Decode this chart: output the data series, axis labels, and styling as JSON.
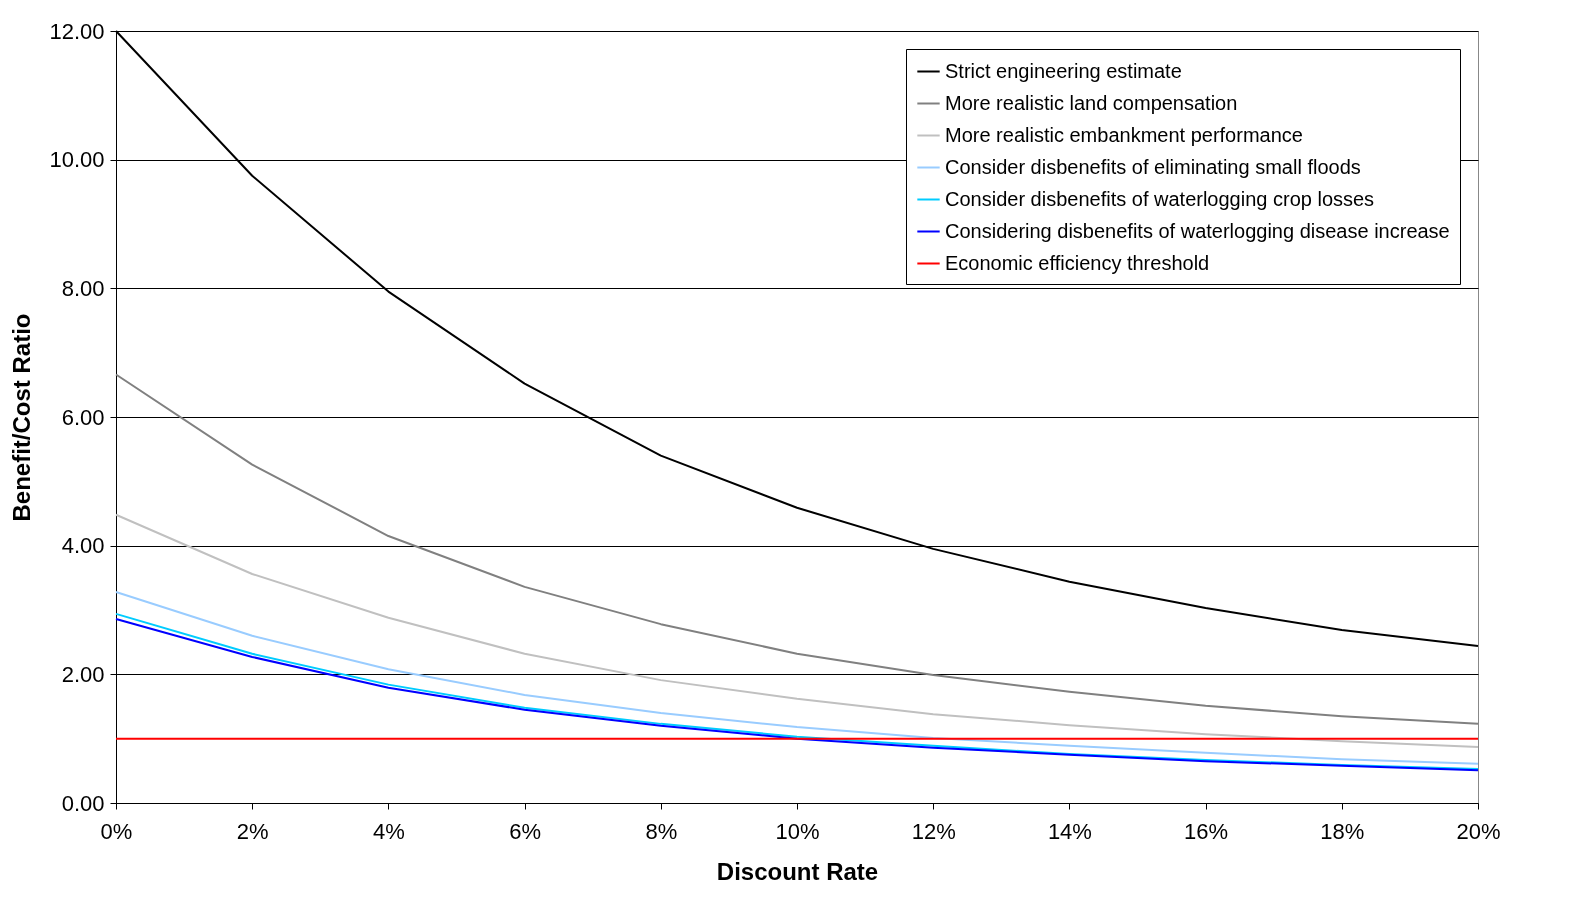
{
  "chart_data": {
    "type": "line",
    "xlabel": "Discount Rate",
    "ylabel": "Benefit/Cost Ratio",
    "x": [
      0,
      2,
      4,
      6,
      8,
      10,
      12,
      14,
      16,
      18,
      20
    ],
    "series": [
      {
        "name": "Strict engineering estimate",
        "color": "#000000",
        "values": [
          12.0,
          9.75,
          7.95,
          6.52,
          5.4,
          4.59,
          3.95,
          3.44,
          3.03,
          2.69,
          2.44
        ]
      },
      {
        "name": "More realistic land compensation",
        "color": "#808080",
        "values": [
          6.66,
          5.26,
          4.15,
          3.36,
          2.78,
          2.32,
          1.99,
          1.73,
          1.51,
          1.35,
          1.23
        ]
      },
      {
        "name": "More realistic embankment performance",
        "color": "#c0c0c0",
        "values": [
          4.48,
          3.56,
          2.88,
          2.32,
          1.91,
          1.62,
          1.38,
          1.21,
          1.07,
          0.96,
          0.87
        ]
      },
      {
        "name": "Consider disbenefits of eliminating small floods",
        "color": "#99ccff",
        "values": [
          3.28,
          2.6,
          2.08,
          1.68,
          1.4,
          1.18,
          1.01,
          0.89,
          0.78,
          0.68,
          0.61
        ]
      },
      {
        "name": "Consider disbenefits of waterlogging crop losses",
        "color": "#00ccff",
        "values": [
          2.94,
          2.32,
          1.84,
          1.48,
          1.23,
          1.03,
          0.89,
          0.76,
          0.67,
          0.59,
          0.53
        ]
      },
      {
        "name": "Considering disbenefits of waterlogging disease increase",
        "color": "#0000ff",
        "values": [
          2.86,
          2.27,
          1.79,
          1.45,
          1.2,
          1.0,
          0.86,
          0.75,
          0.65,
          0.58,
          0.51
        ]
      },
      {
        "name": "Economic efficiency threshold",
        "color": "#ff0000",
        "values": [
          1,
          1,
          1,
          1,
          1,
          1,
          1,
          1,
          1,
          1,
          1
        ]
      }
    ],
    "xlim": [
      0,
      20
    ],
    "xticks": [
      {
        "value": 0,
        "label": "0%"
      },
      {
        "value": 2,
        "label": "2%"
      },
      {
        "value": 4,
        "label": "4%"
      },
      {
        "value": 6,
        "label": "6%"
      },
      {
        "value": 8,
        "label": "8%"
      },
      {
        "value": 10,
        "label": "10%"
      },
      {
        "value": 12,
        "label": "12%"
      },
      {
        "value": 14,
        "label": "14%"
      },
      {
        "value": 16,
        "label": "16%"
      },
      {
        "value": 18,
        "label": "18%"
      },
      {
        "value": 20,
        "label": "20%"
      }
    ],
    "ylim": [
      0,
      12
    ],
    "yticks": [
      {
        "value": 0,
        "label": "0.00"
      },
      {
        "value": 2,
        "label": "2.00"
      },
      {
        "value": 4,
        "label": "4.00"
      },
      {
        "value": 6,
        "label": "6.00"
      },
      {
        "value": 8,
        "label": "8.00"
      },
      {
        "value": 10,
        "label": "10.00"
      },
      {
        "value": 12,
        "label": "12.00"
      }
    ],
    "grid": "y",
    "legend": "top right",
    "marker": "none",
    "line_style": "solid"
  }
}
